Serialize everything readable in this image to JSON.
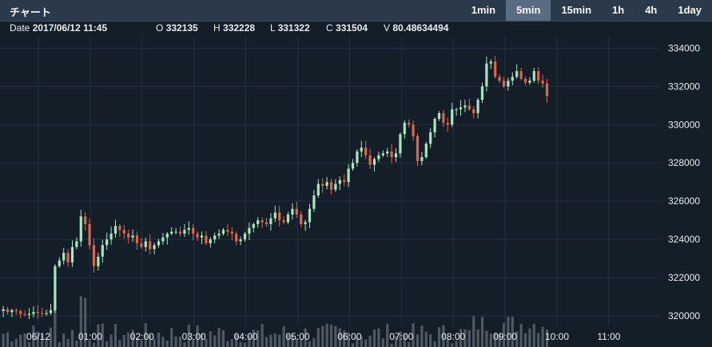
{
  "header": {
    "title": "チャート",
    "timeframes": [
      "1min",
      "5min",
      "15min",
      "1h",
      "4h",
      "1day"
    ],
    "active_timeframe": "5min"
  },
  "ohlc": {
    "date_label": "Date",
    "date": "2017/06/12 11:45",
    "open_label": "O",
    "open": "332135",
    "high_label": "H",
    "high": "332228",
    "low_label": "L",
    "low": "331322",
    "close_label": "C",
    "close": "331504",
    "volume_label": "V",
    "volume": "80.48634494"
  },
  "colors": {
    "up": "#a8e6bc",
    "down": "#e0654c",
    "background": "#131e29",
    "grid": "#233140",
    "volume": "#4f5962",
    "text": "#e8edf2"
  },
  "chart_data": {
    "type": "candlestick",
    "interval": "5min",
    "y_ticks": [
      320000,
      322000,
      324000,
      326000,
      328000,
      330000,
      332000,
      334000
    ],
    "ylim": [
      319500,
      334600
    ],
    "x_ticks": [
      "06/12",
      "01:00",
      "02:00",
      "03:00",
      "04:00",
      "05:00",
      "06:00",
      "07:00",
      "08:00",
      "09:00",
      "10:00",
      "11:00"
    ],
    "candles_start": "00:00",
    "close_path": [
      320350,
      320200,
      320300,
      320250,
      320100,
      320050,
      320100,
      320200,
      320150,
      320100,
      320150,
      320300,
      322600,
      322900,
      323300,
      322800,
      323600,
      323900,
      325200,
      324800,
      323700,
      322600,
      323100,
      323700,
      324000,
      324300,
      324700,
      324500,
      324300,
      324100,
      324200,
      323800,
      323600,
      323900,
      323500,
      323700,
      323900,
      324100,
      324300,
      324400,
      324400,
      324300,
      324500,
      324600,
      324300,
      324100,
      324200,
      323800,
      324000,
      324200,
      324300,
      324500,
      324400,
      324300,
      323900,
      324000,
      324300,
      324600,
      324800,
      325000,
      324900,
      324800,
      325100,
      325400,
      325000,
      324900,
      325300,
      325600,
      325300,
      324800,
      324900,
      325600,
      326300,
      326900,
      326800,
      327000,
      326600,
      326900,
      327100,
      327000,
      327700,
      328000,
      328600,
      328800,
      328400,
      327900,
      328200,
      328400,
      328500,
      328600,
      328300,
      328500,
      329500,
      330100,
      330000,
      329400,
      328100,
      328300,
      329000,
      329600,
      330300,
      330600,
      330100,
      330000,
      330800,
      330800,
      330900,
      331000,
      330800,
      330600,
      331300,
      332000,
      333200,
      333300,
      332500,
      332300,
      332000,
      332300,
      332500,
      332800,
      332400,
      332200,
      332300,
      332800,
      332300,
      332150,
      331500
    ],
    "volume_note": "volume bars shown along the bottom of the chart, unscaled"
  }
}
